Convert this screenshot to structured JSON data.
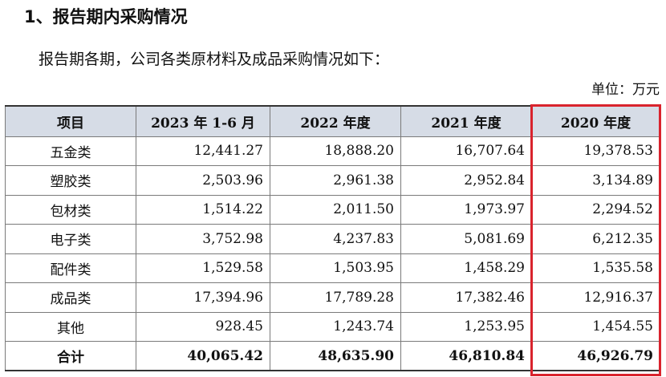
{
  "heading": "1、报告期内采购情况",
  "intro": "报告期各期，公司各类原材料及成品采购情况如下：",
  "unit": "单位：万元",
  "table": {
    "headers": [
      "项目",
      "2023 年 1-6 月",
      "2022 年度",
      "2021 年度",
      "2020 年度"
    ],
    "rows": [
      [
        "五金类",
        "12,441.27",
        "18,888.20",
        "16,707.64",
        "19,378.53"
      ],
      [
        "塑胶类",
        "2,503.96",
        "2,961.38",
        "2,952.84",
        "3,134.89"
      ],
      [
        "包材类",
        "1,514.22",
        "2,011.50",
        "1,973.97",
        "2,294.52"
      ],
      [
        "电子类",
        "3,752.98",
        "4,237.83",
        "5,081.69",
        "6,212.35"
      ],
      [
        "配件类",
        "1,529.58",
        "1,503.95",
        "1,458.29",
        "1,535.58"
      ],
      [
        "成品类",
        "17,394.96",
        "17,789.28",
        "17,382.46",
        "12,916.37"
      ],
      [
        "其他",
        "928.45",
        "1,243.74",
        "1,253.95",
        "1,454.55"
      ]
    ],
    "total": [
      "合计",
      "40,065.42",
      "48,635.90",
      "46,810.84",
      "46,926.79"
    ]
  },
  "highlight": {
    "column": "2020 年度",
    "color": "#d9232d"
  }
}
